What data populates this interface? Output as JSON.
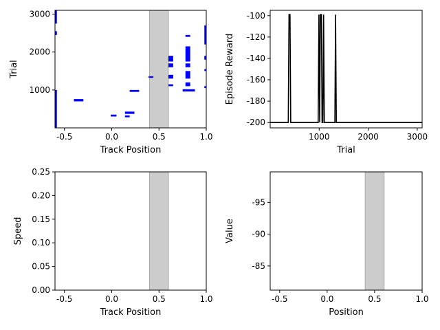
{
  "chart_data": [
    {
      "type": "scatter",
      "xlabel": "Track Position",
      "ylabel": "Trial",
      "xlim": [
        -0.6,
        1.0
      ],
      "ylim": [
        1,
        3100
      ],
      "xticks": [
        "-0.5",
        "0.0",
        "0.5",
        "1.0"
      ],
      "yticks": [
        "1000",
        "2000",
        "3000"
      ],
      "shaded_region": [
        0.4,
        0.6
      ],
      "marker_color": "#0000ff",
      "shade_color": "#cccccc",
      "segments": [
        {
          "x0": -0.6,
          "x1": -0.58,
          "y0": 1,
          "y1": 1000
        },
        {
          "x0": -0.6,
          "x1": -0.58,
          "y0": 2450,
          "y1": 2550
        },
        {
          "x0": -0.6,
          "x1": -0.58,
          "y0": 2750,
          "y1": 3100
        },
        {
          "x0": -0.4,
          "x1": -0.3,
          "y0": 700,
          "y1": 760
        },
        {
          "x0": -0.01,
          "x1": 0.05,
          "y0": 300,
          "y1": 350
        },
        {
          "x0": 0.14,
          "x1": 0.19,
          "y0": 280,
          "y1": 330
        },
        {
          "x0": 0.14,
          "x1": 0.24,
          "y0": 370,
          "y1": 430
        },
        {
          "x0": 0.19,
          "x1": 0.29,
          "y0": 950,
          "y1": 1000
        },
        {
          "x0": 0.39,
          "x1": 0.44,
          "y0": 1320,
          "y1": 1360
        },
        {
          "x0": 0.6,
          "x1": 0.65,
          "y0": 1100,
          "y1": 1150
        },
        {
          "x0": 0.6,
          "x1": 0.65,
          "y0": 1300,
          "y1": 1400
        },
        {
          "x0": 0.6,
          "x1": 0.65,
          "y0": 1600,
          "y1": 1700
        },
        {
          "x0": 0.6,
          "x1": 0.65,
          "y0": 1750,
          "y1": 1900
        },
        {
          "x0": 0.75,
          "x1": 0.88,
          "y0": 960,
          "y1": 1020
        },
        {
          "x0": 0.78,
          "x1": 0.83,
          "y0": 1100,
          "y1": 1200
        },
        {
          "x0": 0.78,
          "x1": 0.83,
          "y0": 1300,
          "y1": 1500
        },
        {
          "x0": 0.78,
          "x1": 0.83,
          "y0": 1600,
          "y1": 1700
        },
        {
          "x0": 0.78,
          "x1": 0.83,
          "y0": 1750,
          "y1": 2150
        },
        {
          "x0": 0.78,
          "x1": 0.83,
          "y0": 2400,
          "y1": 2450
        },
        {
          "x0": 0.98,
          "x1": 1.0,
          "y0": 1050,
          "y1": 1100
        },
        {
          "x0": 0.98,
          "x1": 1.0,
          "y0": 1500,
          "y1": 1550
        },
        {
          "x0": 0.98,
          "x1": 1.0,
          "y0": 1800,
          "y1": 1900
        },
        {
          "x0": 0.98,
          "x1": 1.0,
          "y0": 2200,
          "y1": 2700
        }
      ]
    },
    {
      "type": "line",
      "xlabel": "Trial",
      "ylabel": "Episode Reward",
      "xlim": [
        1,
        3100
      ],
      "ylim": [
        -205,
        -95
      ],
      "xticks": [
        "1000",
        "2000",
        "3000"
      ],
      "yticks": [
        "-100",
        "-120",
        "-140",
        "-160",
        "-180",
        "-200"
      ],
      "line_color": "#000000",
      "x": [
        1,
        370,
        385,
        405,
        420,
        980,
        995,
        1010,
        1025,
        1045,
        1060,
        1075,
        1090,
        1105,
        1320,
        1335,
        1350,
        3100
      ],
      "y": [
        -200,
        -200,
        -99,
        -99,
        -200,
        -200,
        -99,
        -200,
        -99,
        -99,
        -200,
        -200,
        -99,
        -200,
        -200,
        -99,
        -200,
        -200
      ]
    },
    {
      "type": "scatter",
      "xlabel": "Track Position",
      "ylabel": "Speed",
      "xlim": [
        -0.6,
        1.0
      ],
      "ylim": [
        0.0,
        0.25
      ],
      "xticks": [
        "-0.5",
        "0.0",
        "0.5",
        "1.0"
      ],
      "yticks": [
        "0.00",
        "0.05",
        "0.10",
        "0.15",
        "0.20",
        "0.25"
      ],
      "shaded_region": [
        0.4,
        0.6
      ],
      "shade_color": "#cccccc"
    },
    {
      "type": "line",
      "xlabel": "Position",
      "ylabel": "Value",
      "xlim": [
        -0.6,
        1.0
      ],
      "ylim": [
        -81.2,
        -99.8
      ],
      "xticks": [
        "-0.5",
        "0.0",
        "0.5",
        "1.0"
      ],
      "yticks": [
        "-95",
        "-90",
        "-85"
      ],
      "shaded_region": [
        0.4,
        0.6
      ],
      "shade_color": "#cccccc"
    }
  ]
}
